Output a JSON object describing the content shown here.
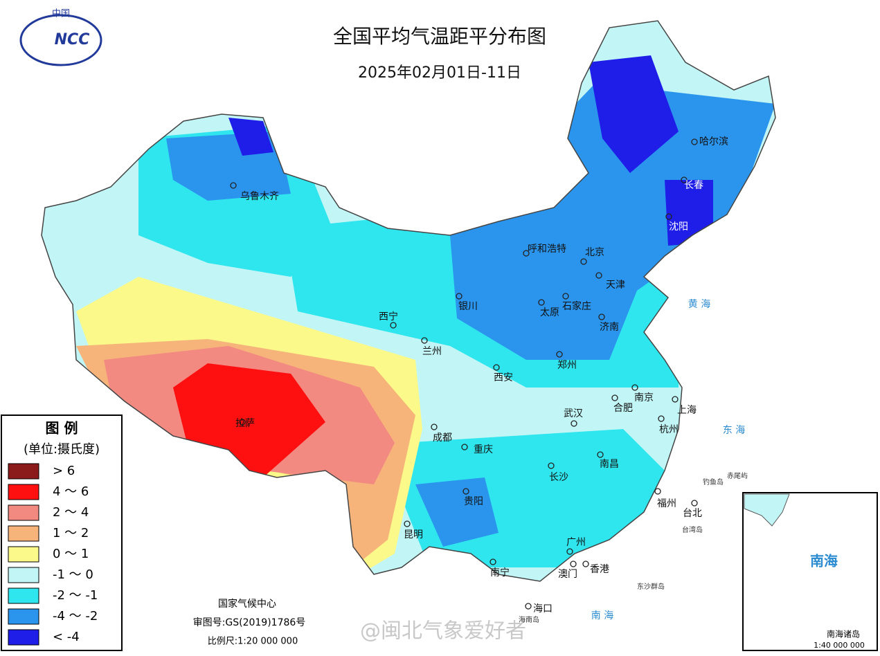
{
  "header": {
    "title": "全国平均气温距平分布图",
    "subtitle": "2025年02月01日-11日",
    "logo_top": "中国",
    "logo_mark": "NCC"
  },
  "legend": {
    "title": "图 例",
    "unit": "(单位:摄氏度)",
    "items": [
      {
        "label": "> 6",
        "color": "#8b1a1a"
      },
      {
        "label": "4 ～ 6",
        "color": "#ff1010"
      },
      {
        "label": "2 ～ 4",
        "color": "#f28a82"
      },
      {
        "label": "1 ～ 2",
        "color": "#f6b47a"
      },
      {
        "label": "0 ～ 1",
        "color": "#fbf98a"
      },
      {
        "label": "-1 ～ 0",
        "color": "#c2f5f5"
      },
      {
        "label": "-2 ～ -1",
        "color": "#2fe6ee"
      },
      {
        "label": "-4 ～ -2",
        "color": "#2b95ee"
      },
      {
        "label": "< -4",
        "color": "#1e1ee8"
      }
    ]
  },
  "cities": [
    {
      "name": "乌鲁木齐"
    },
    {
      "name": "呼和浩特"
    },
    {
      "name": "北京"
    },
    {
      "name": "天津"
    },
    {
      "name": "银川"
    },
    {
      "name": "太原"
    },
    {
      "name": "石家庄"
    },
    {
      "name": "济南"
    },
    {
      "name": "西宁"
    },
    {
      "name": "兰州"
    },
    {
      "name": "郑州"
    },
    {
      "name": "西安"
    },
    {
      "name": "南京"
    },
    {
      "name": "合肥"
    },
    {
      "name": "上海"
    },
    {
      "name": "武汉"
    },
    {
      "name": "杭州"
    },
    {
      "name": "成都"
    },
    {
      "name": "重庆"
    },
    {
      "name": "拉萨"
    },
    {
      "name": "长沙"
    },
    {
      "name": "南昌"
    },
    {
      "name": "贵阳"
    },
    {
      "name": "福州"
    },
    {
      "name": "台北"
    },
    {
      "name": "昆明"
    },
    {
      "name": "广州"
    },
    {
      "name": "南宁"
    },
    {
      "name": "澳门"
    },
    {
      "name": "香港"
    },
    {
      "name": "海口"
    },
    {
      "name": "哈尔滨"
    },
    {
      "name": "长春"
    },
    {
      "name": "沈阳"
    }
  ],
  "places": [
    {
      "name": "钓鱼岛"
    },
    {
      "name": "赤尾屿"
    },
    {
      "name": "台湾岛"
    },
    {
      "name": "东沙群岛"
    },
    {
      "name": "海南岛"
    },
    {
      "name": "黄 海"
    },
    {
      "name": "东 海"
    },
    {
      "name": "南 海"
    }
  ],
  "footer": {
    "agency": "国家气候中心",
    "map_no": "审图号:GS(2019)1786号",
    "scale": "比例尺:1:20 000 000"
  },
  "inset": {
    "title": "南海",
    "label": "南海诸岛",
    "scale": "1:40 000 000"
  },
  "watermark": "@闽北气象爱好者"
}
